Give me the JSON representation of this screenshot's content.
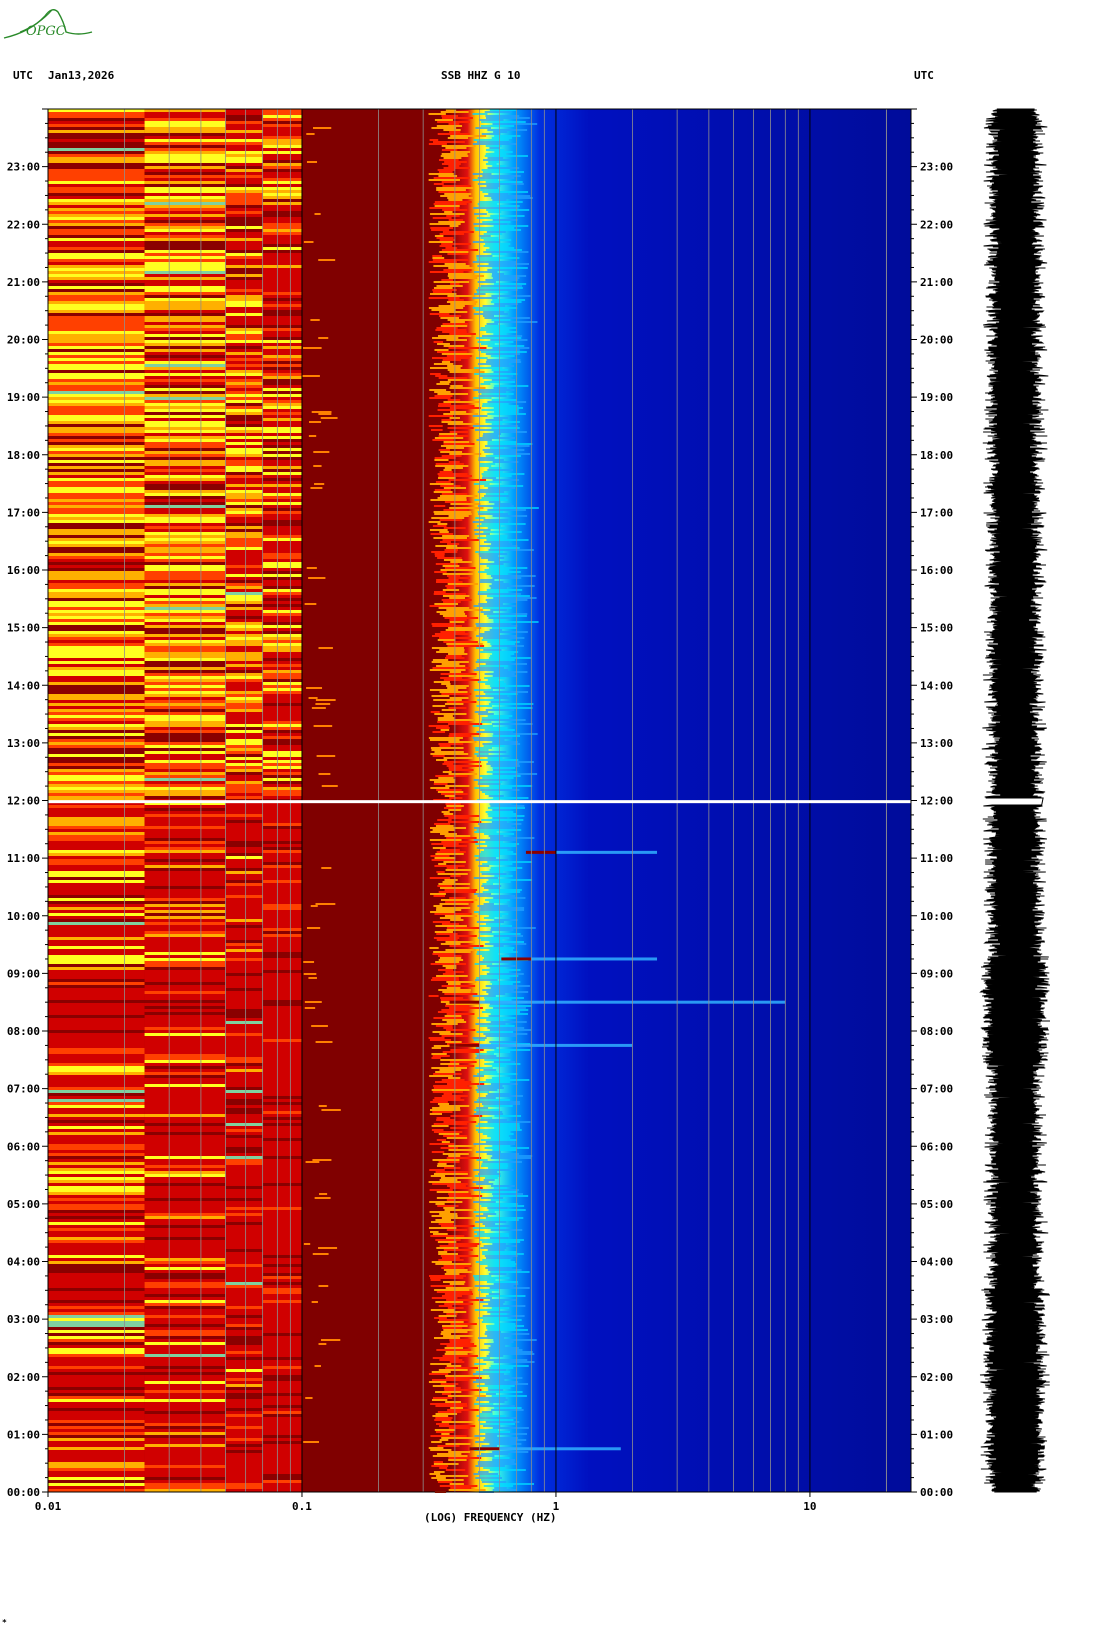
{
  "header": {
    "left_tz": "UTC",
    "date": "Jan13,2026",
    "station": "SSB HHZ G 10",
    "right_tz": "UTC"
  },
  "logo": {
    "text": "OPGC",
    "color": "#2a8a2a"
  },
  "chart_data": {
    "type": "heatmap",
    "title": "SSB HHZ G 10",
    "xlabel": "(LOG) FREQUENCY (HZ)",
    "x_scale": "log",
    "xlim": [
      0.01,
      25
    ],
    "x_ticks": [
      {
        "value": 0.01,
        "label": "0.01"
      },
      {
        "value": 0.1,
        "label": "0.1"
      },
      {
        "value": 1,
        "label": "1"
      },
      {
        "value": 10,
        "label": "10"
      }
    ],
    "y_label_left": "UTC",
    "y_label_right": "UTC",
    "y_ticks": [
      "00:00",
      "01:00",
      "02:00",
      "03:00",
      "04:00",
      "05:00",
      "06:00",
      "07:00",
      "08:00",
      "09:00",
      "10:00",
      "11:00",
      "12:00",
      "13:00",
      "14:00",
      "15:00",
      "16:00",
      "17:00",
      "18:00",
      "19:00",
      "20:00",
      "21:00",
      "22:00",
      "23:00"
    ],
    "ylim_hours": [
      0,
      24
    ],
    "colormap": [
      "#000080",
      "#0000ff",
      "#00ffff",
      "#ffff00",
      "#ff0000",
      "#800000"
    ],
    "energy_front_hz": 0.5,
    "data_gap_hour": 11.98,
    "events": [
      {
        "time_hour": 8.5,
        "fmin_hz": 0.5,
        "fmax_hz": 8
      },
      {
        "time_hour": 7.75,
        "fmin_hz": 0.5,
        "fmax_hz": 2
      },
      {
        "time_hour": 11.1,
        "fmin_hz": 1,
        "fmax_hz": 2.5
      },
      {
        "time_hour": 9.25,
        "fmin_hz": 0.8,
        "fmax_hz": 2.5
      },
      {
        "time_hour": 0.75,
        "fmin_hz": 0.6,
        "fmax_hz": 1.8
      }
    ],
    "seismogram": {
      "label": "trace",
      "gap_hour": 11.98
    }
  },
  "footer": {
    "mark": "*"
  }
}
